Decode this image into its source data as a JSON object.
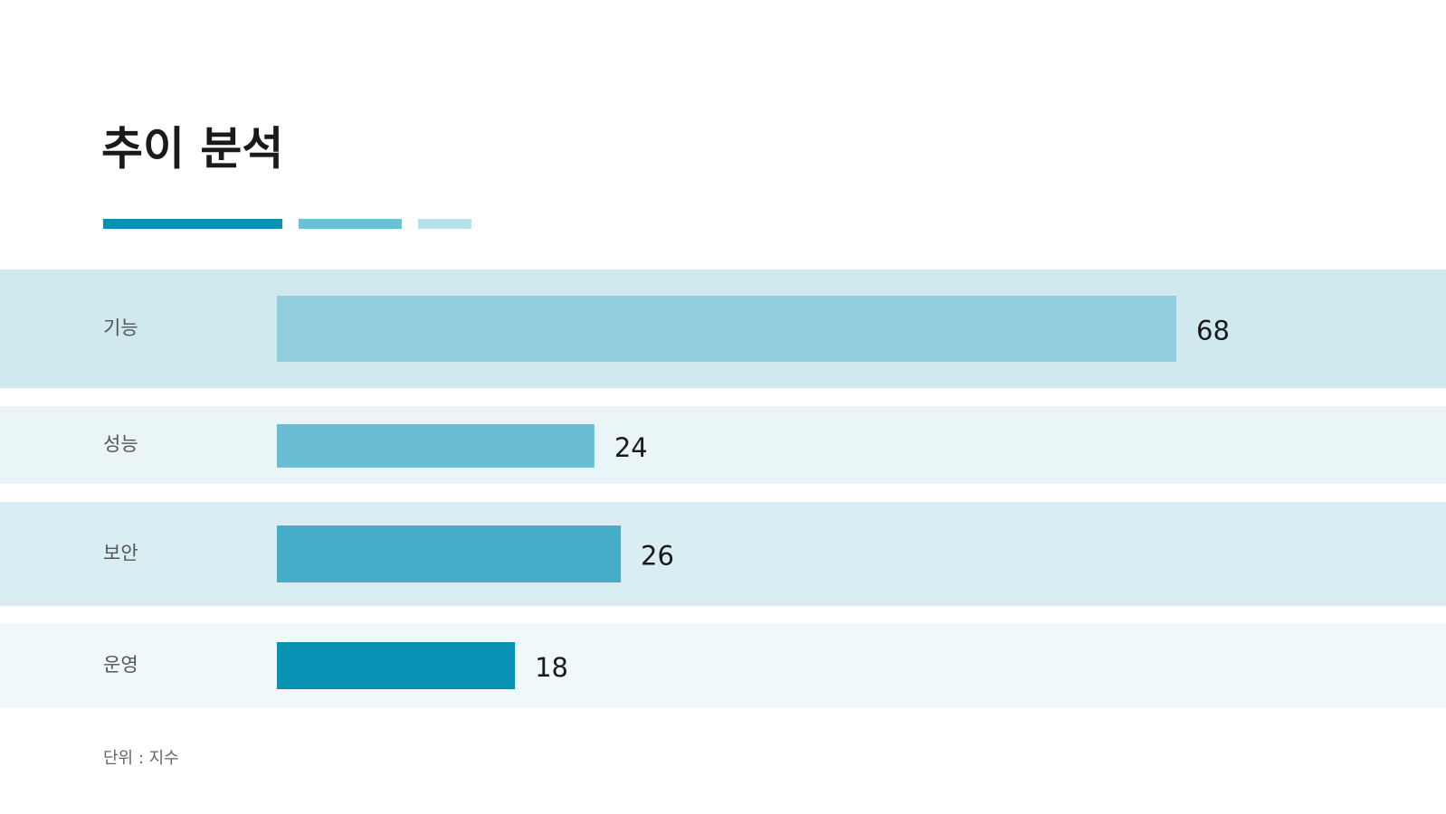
{
  "chart_data": {
    "type": "bar",
    "orientation": "horizontal",
    "title": "추이 분석",
    "categories": [
      "기능",
      "성능",
      "보안",
      "운영"
    ],
    "values": [
      68,
      24,
      26,
      18
    ],
    "colors": [
      "#92cddd",
      "#6bbdd3",
      "#45adc8",
      "#0891b2"
    ],
    "unit_note": "단위 : 지수"
  }
}
